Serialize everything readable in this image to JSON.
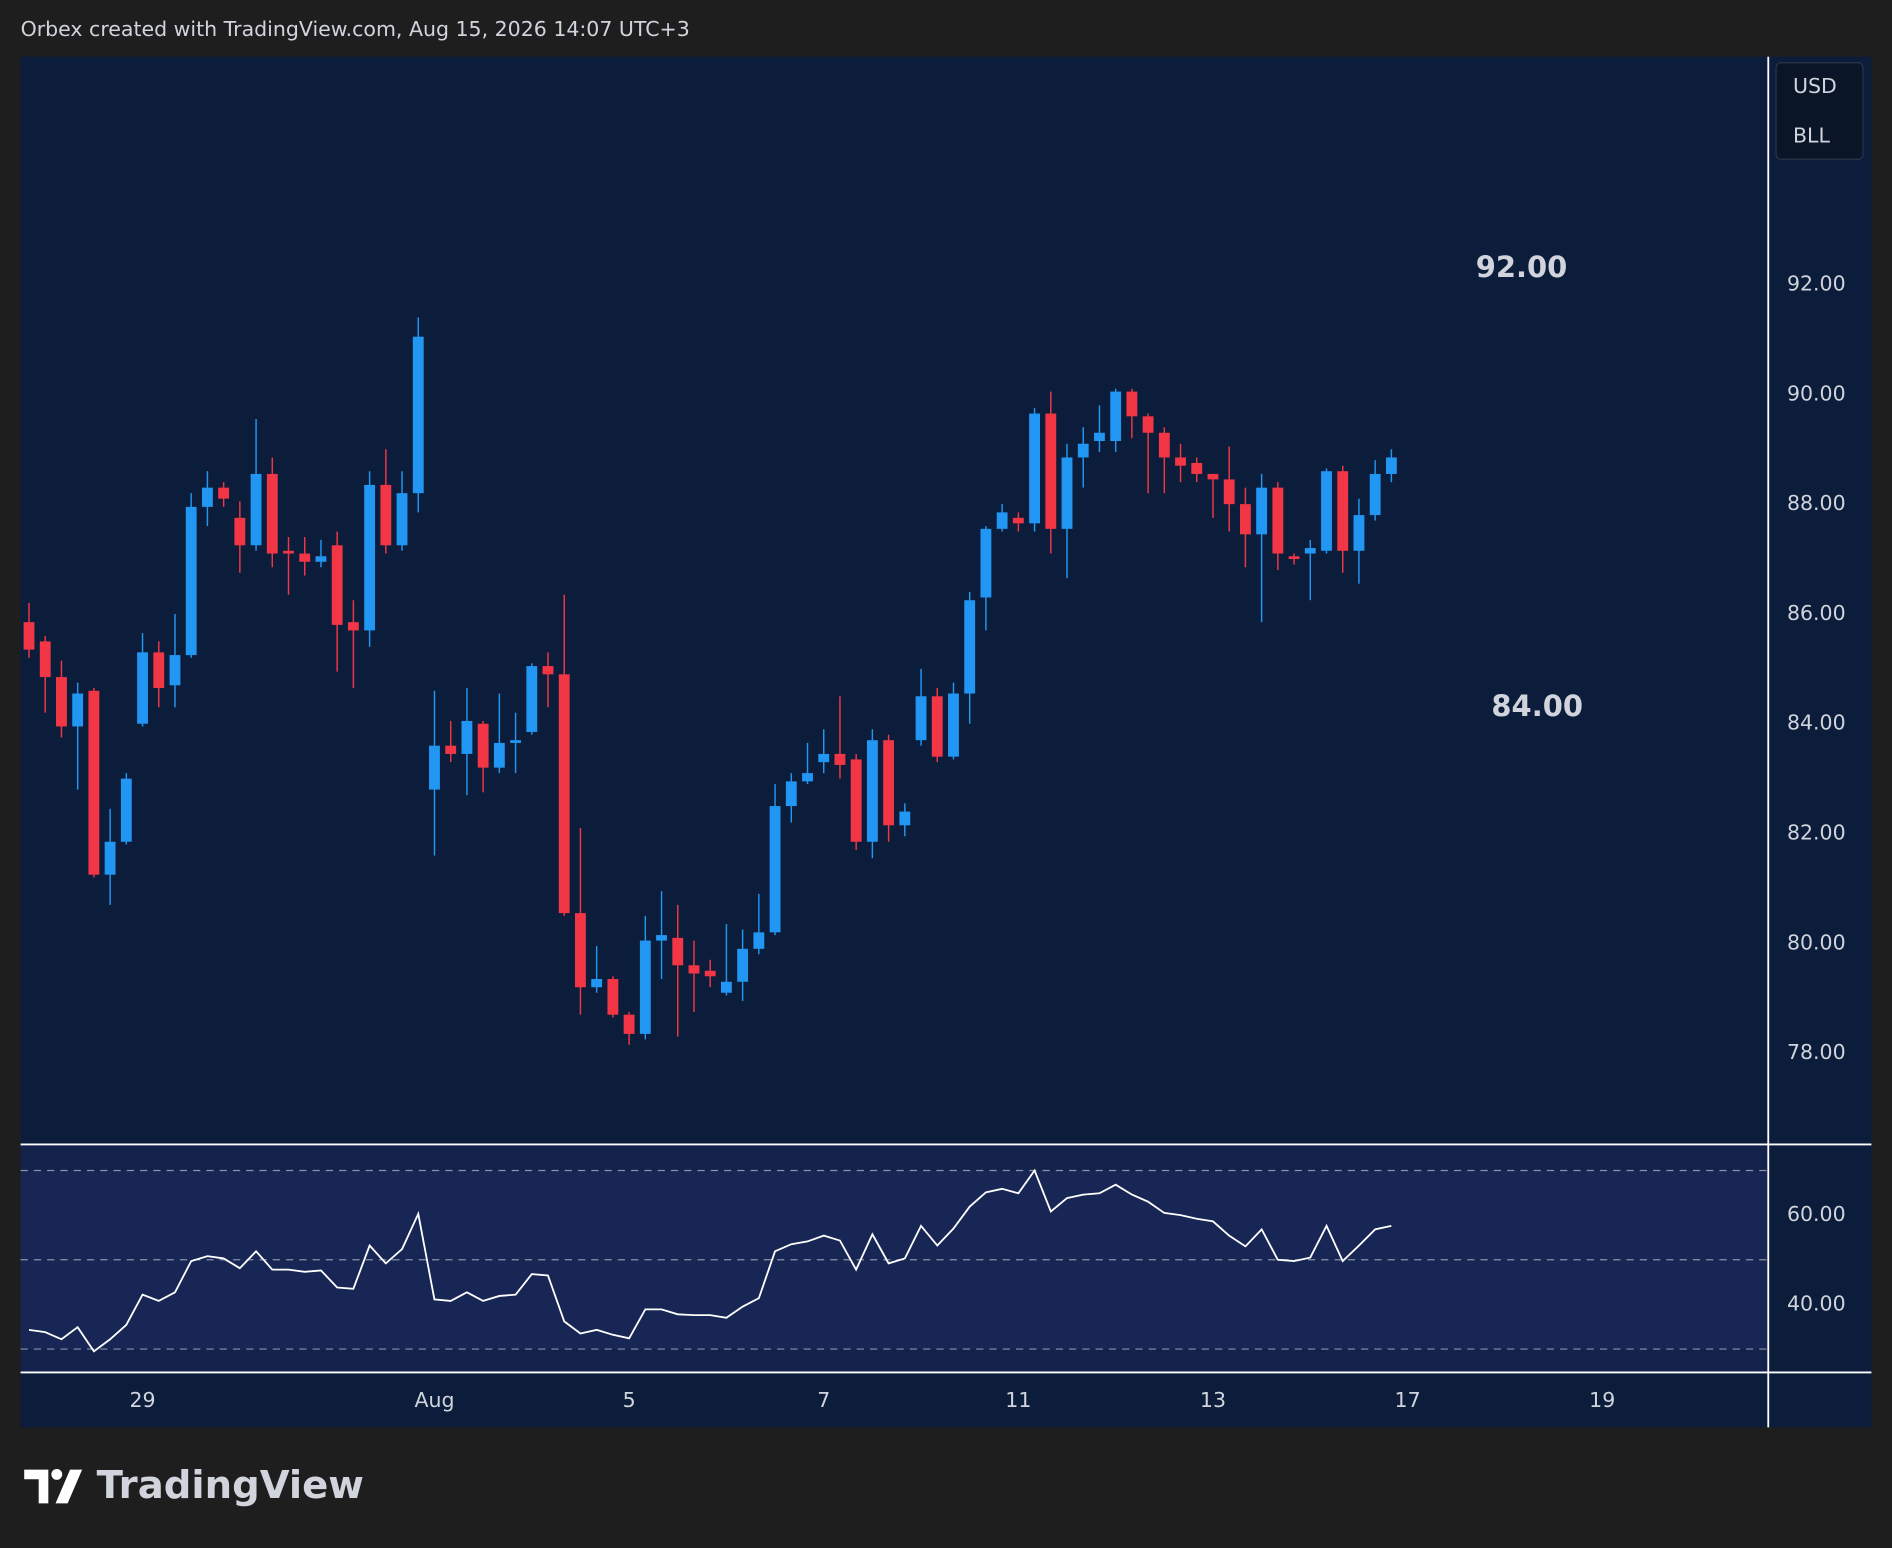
{
  "header": "Orbex created with TradingView.com, Aug 15, 2026 14:07 UTC+3",
  "badges": [
    "USD",
    "BLL"
  ],
  "logo": "TradingView",
  "chart_data": [
    {
      "type": "candlestick",
      "up_color": "#2196f3",
      "down_color": "#f23645",
      "annotations": [
        "92.00",
        "84.00"
      ],
      "open": [
        85.85,
        85.5,
        84.85,
        83.95,
        84.6,
        81.25,
        81.85,
        84.0,
        85.3,
        84.7,
        85.25,
        87.95,
        88.3,
        87.75,
        87.25,
        88.55,
        87.15,
        87.1,
        86.95,
        87.25,
        85.85,
        85.7,
        88.35,
        87.25,
        88.2,
        82.8,
        83.6,
        83.45,
        84.0,
        83.2,
        83.65,
        83.85,
        85.05,
        84.9,
        80.55,
        79.2,
        79.35,
        78.7,
        78.35,
        80.05,
        80.1,
        79.6,
        79.5,
        79.1,
        79.3,
        79.9,
        80.2,
        82.5,
        82.95,
        83.3,
        83.45,
        83.35,
        81.85,
        83.7,
        82.15,
        83.7,
        84.5,
        83.4,
        84.55,
        86.3,
        87.55,
        87.75,
        87.65,
        89.65,
        87.55,
        88.85,
        89.15,
        89.15,
        90.05,
        89.6,
        89.3,
        88.85,
        88.75,
        88.55,
        88.45,
        88.0,
        87.45,
        88.3,
        87.05,
        87.1,
        87.15,
        88.6,
        87.15,
        87.8,
        88.55
      ],
      "high": [
        86.2,
        85.6,
        85.15,
        84.75,
        84.65,
        82.45,
        83.1,
        85.65,
        85.5,
        86.0,
        88.2,
        88.6,
        88.4,
        88.05,
        89.55,
        88.85,
        87.4,
        87.4,
        87.35,
        87.5,
        86.25,
        88.6,
        89.0,
        88.6,
        91.4,
        84.6,
        84.05,
        84.65,
        84.05,
        84.55,
        84.2,
        85.1,
        85.3,
        86.35,
        82.1,
        79.95,
        79.4,
        78.75,
        80.5,
        80.95,
        80.7,
        80.05,
        79.7,
        80.35,
        80.25,
        80.9,
        82.9,
        83.1,
        83.65,
        83.9,
        84.5,
        83.45,
        83.9,
        83.8,
        82.55,
        85.0,
        84.65,
        84.75,
        86.4,
        87.6,
        88.0,
        87.85,
        89.75,
        90.05,
        89.1,
        89.4,
        89.8,
        90.1,
        90.1,
        89.65,
        89.4,
        89.1,
        88.85,
        88.55,
        89.05,
        88.3,
        88.55,
        88.4,
        87.1,
        87.35,
        88.65,
        88.7,
        88.1,
        88.8,
        89.0
      ],
      "low": [
        85.2,
        84.2,
        83.75,
        82.8,
        81.2,
        80.7,
        81.8,
        83.95,
        84.3,
        84.3,
        85.2,
        87.6,
        87.95,
        86.75,
        87.15,
        86.85,
        86.35,
        86.7,
        86.85,
        84.95,
        84.65,
        85.4,
        87.1,
        87.15,
        87.85,
        81.6,
        83.3,
        82.7,
        82.75,
        83.1,
        83.1,
        83.8,
        84.3,
        80.5,
        78.7,
        79.1,
        78.65,
        78.15,
        78.25,
        79.35,
        78.3,
        78.75,
        79.2,
        79.05,
        78.95,
        79.8,
        80.15,
        82.2,
        82.9,
        83.1,
        83.0,
        81.7,
        81.55,
        81.85,
        81.95,
        83.6,
        83.3,
        83.35,
        84.0,
        85.7,
        87.5,
        87.5,
        87.5,
        87.1,
        86.65,
        88.3,
        88.95,
        88.95,
        89.2,
        88.2,
        88.2,
        88.4,
        88.4,
        87.75,
        87.5,
        86.85,
        85.85,
        86.8,
        86.9,
        86.25,
        87.1,
        86.75,
        86.55,
        87.7,
        88.4
      ],
      "close": [
        85.35,
        84.85,
        83.95,
        84.55,
        81.25,
        81.85,
        83.0,
        85.3,
        84.65,
        85.25,
        87.95,
        88.3,
        88.1,
        87.25,
        88.55,
        87.1,
        87.1,
        86.95,
        87.05,
        85.8,
        85.7,
        88.35,
        87.25,
        88.2,
        91.05,
        83.6,
        83.45,
        84.05,
        83.2,
        83.65,
        83.7,
        85.05,
        84.9,
        80.55,
        79.2,
        79.35,
        78.7,
        78.35,
        80.05,
        80.15,
        79.6,
        79.45,
        79.4,
        79.3,
        79.9,
        80.2,
        82.5,
        82.95,
        83.1,
        83.45,
        83.25,
        81.85,
        83.7,
        82.15,
        82.4,
        84.5,
        83.4,
        84.55,
        86.25,
        87.55,
        87.85,
        87.65,
        89.65,
        87.55,
        88.85,
        89.1,
        89.3,
        90.05,
        89.6,
        89.3,
        88.85,
        88.7,
        88.55,
        88.45,
        88.0,
        87.45,
        88.3,
        87.1,
        87.0,
        87.2,
        88.6,
        87.15,
        87.8,
        88.55,
        88.85
      ],
      "ylim": [
        76.37,
        96.15
      ],
      "yticks": [
        {
          "value": 78,
          "label": "78.00"
        },
        {
          "value": 80,
          "label": "80.00"
        },
        {
          "value": 82,
          "label": "82.00"
        },
        {
          "value": 84,
          "label": "84.00"
        },
        {
          "value": 86,
          "label": "86.00"
        },
        {
          "value": 88,
          "label": "88.00"
        },
        {
          "value": 90,
          "label": "90.00"
        },
        {
          "value": 92,
          "label": "92.00"
        }
      ],
      "xlim": [
        -0.52,
        107.2
      ],
      "xticks": [
        {
          "value": 7,
          "label": "29"
        },
        {
          "value": 25,
          "label": "Aug"
        },
        {
          "value": 37,
          "label": "5"
        },
        {
          "value": 49,
          "label": "7"
        },
        {
          "value": 61,
          "label": "11"
        },
        {
          "value": 73,
          "label": "13"
        },
        {
          "value": 85,
          "label": "17"
        },
        {
          "value": 97,
          "label": "19"
        }
      ]
    },
    {
      "type": "line",
      "color": "#ffffff",
      "values": [
        34.3,
        33.8,
        32.2,
        34.9,
        29.5,
        32.2,
        35.4,
        42.2,
        40.8,
        42.7,
        49.7,
        50.8,
        50.3,
        48.1,
        51.9,
        47.8,
        47.8,
        47.3,
        47.6,
        43.8,
        43.5,
        53.2,
        49.2,
        52.4,
        60.3,
        41.1,
        40.8,
        42.7,
        40.8,
        41.9,
        42.2,
        46.8,
        46.5,
        36.2,
        33.5,
        34.3,
        33.2,
        32.4,
        38.9,
        38.9,
        37.8,
        37.6,
        37.6,
        37.0,
        39.5,
        41.4,
        51.9,
        53.5,
        54.1,
        55.4,
        54.3,
        47.8,
        55.7,
        49.2,
        50.3,
        57.6,
        53.2,
        57.0,
        61.9,
        65.1,
        65.9,
        64.9,
        70.0,
        60.8,
        63.8,
        64.6,
        64.9,
        66.8,
        64.6,
        63.0,
        60.5,
        60.0,
        59.2,
        58.6,
        55.4,
        53.0,
        56.8,
        50.0,
        49.7,
        50.5,
        57.6,
        49.7,
        53.2,
        56.8,
        57.6
      ],
      "ylim": [
        24.9,
        75.7
      ],
      "yticks": [
        {
          "value": 40,
          "label": "40.00"
        },
        {
          "value": 60,
          "label": "60.00"
        }
      ],
      "levels": [
        70,
        50,
        30
      ]
    }
  ]
}
